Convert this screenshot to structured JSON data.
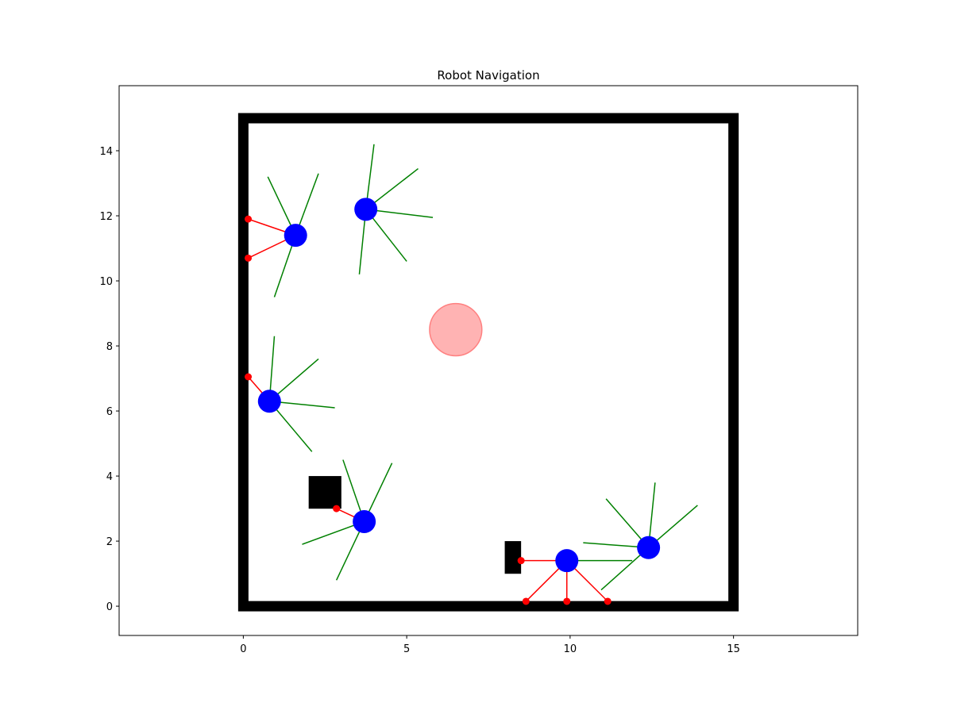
{
  "chart_data": {
    "type": "scatter",
    "title": "Robot Navigation",
    "xlabel": "",
    "ylabel": "",
    "xlim": [
      -3.8,
      18.8
    ],
    "ylim": [
      -0.9,
      16.0
    ],
    "x_ticks": [
      0,
      5,
      10,
      15
    ],
    "y_ticks": [
      0,
      2,
      4,
      6,
      8,
      10,
      12,
      14
    ],
    "grid": false,
    "colors": {
      "robot": "#0000ff",
      "sensor_ray_free": "#008000",
      "sensor_ray_hit": "#ff0000",
      "hit_point": "#ff0000",
      "heading": "#000000",
      "walls": "#000000",
      "goal": "#ff8080"
    },
    "walls": [
      {
        "x": [
          0,
          15,
          15,
          0,
          0
        ],
        "y": [
          0,
          0,
          15,
          15,
          0
        ]
      }
    ],
    "obstacles": [
      {
        "x": 2.0,
        "y": 3.0,
        "width": 1.0,
        "height": 1.0
      },
      {
        "x": 8.0,
        "y": 1.0,
        "width": 0.5,
        "height": 1.0
      }
    ],
    "goal": {
      "x": 6.5,
      "y": 8.5,
      "radius": 0.8
    },
    "robots": [
      {
        "x": 1.6,
        "y": 11.4,
        "heading": [
          1.45,
          11.48
        ],
        "rays": [
          {
            "to": [
              0.15,
              11.9
            ],
            "hit": true
          },
          {
            "to": [
              0.15,
              10.7
            ],
            "hit": true
          },
          {
            "to": [
              0.75,
              13.2
            ],
            "hit": false
          },
          {
            "to": [
              2.3,
              13.3
            ],
            "hit": false
          },
          {
            "to": [
              0.95,
              9.5
            ],
            "hit": false
          }
        ]
      },
      {
        "x": 3.75,
        "y": 12.2,
        "heading": [
          4.0,
          12.05
        ],
        "rays": [
          {
            "to": [
              4.0,
              14.2
            ],
            "hit": false
          },
          {
            "to": [
              5.35,
              13.45
            ],
            "hit": false
          },
          {
            "to": [
              5.8,
              11.95
            ],
            "hit": false
          },
          {
            "to": [
              5.0,
              10.6
            ],
            "hit": false
          },
          {
            "to": [
              3.55,
              10.2
            ],
            "hit": false
          }
        ]
      },
      {
        "x": 0.8,
        "y": 6.3,
        "heading": [
          0.9,
          6.5
        ],
        "rays": [
          {
            "to": [
              0.15,
              7.05
            ],
            "hit": true
          },
          {
            "to": [
              0.95,
              8.3
            ],
            "hit": false
          },
          {
            "to": [
              2.3,
              7.6
            ],
            "hit": false
          },
          {
            "to": [
              2.8,
              6.1
            ],
            "hit": false
          },
          {
            "to": [
              2.1,
              4.75
            ],
            "hit": false
          }
        ]
      },
      {
        "x": 3.7,
        "y": 2.6,
        "heading": [
          3.45,
          2.72
        ],
        "rays": [
          {
            "to": [
              2.85,
              3.0
            ],
            "hit": true
          },
          {
            "to": [
              3.05,
              4.5
            ],
            "hit": false
          },
          {
            "to": [
              4.55,
              4.4
            ],
            "hit": false
          },
          {
            "to": [
              1.8,
              1.9
            ],
            "hit": false
          },
          {
            "to": [
              2.85,
              0.8
            ],
            "hit": false
          }
        ]
      },
      {
        "x": 9.9,
        "y": 1.4,
        "heading": [
          9.9,
          1.15
        ],
        "rays": [
          {
            "to": [
              8.5,
              1.4
            ],
            "hit": true
          },
          {
            "to": [
              8.65,
              0.15
            ],
            "hit": true
          },
          {
            "to": [
              9.9,
              0.15
            ],
            "hit": true
          },
          {
            "to": [
              11.15,
              0.15
            ],
            "hit": true
          },
          {
            "to": [
              11.9,
              1.4
            ],
            "hit": false
          }
        ]
      },
      {
        "x": 12.4,
        "y": 1.8,
        "heading": [
          12.2,
          2.05
        ],
        "rays": [
          {
            "to": [
              11.1,
              3.3
            ],
            "hit": false
          },
          {
            "to": [
              12.6,
              3.8
            ],
            "hit": false
          },
          {
            "to": [
              13.9,
              3.1
            ],
            "hit": false
          },
          {
            "to": [
              10.4,
              1.95
            ],
            "hit": false
          },
          {
            "to": [
              10.95,
              0.5
            ],
            "hit": false
          }
        ]
      }
    ]
  }
}
